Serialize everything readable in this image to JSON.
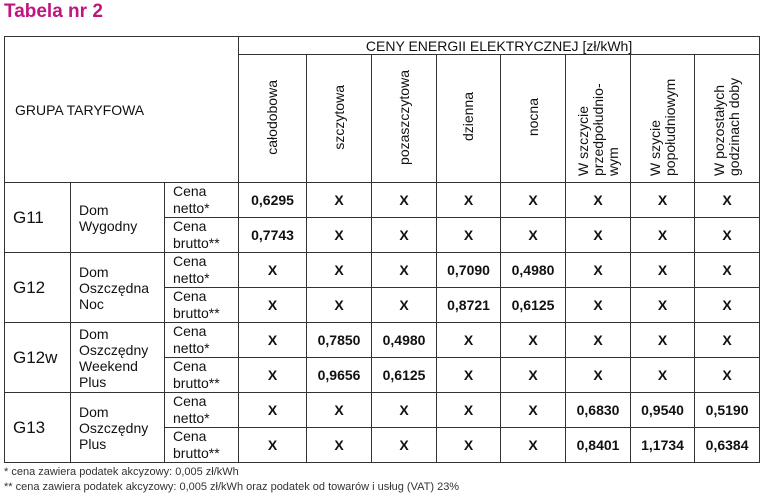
{
  "title": "Tabela nr 2",
  "header": {
    "group_label": "GRUPA TARYFOWA",
    "prices_label": "CENY ENERGII ELEKTRYCZNEJ [zł/kWh]",
    "columns": [
      "całodobowa",
      "szczytowa",
      "pozaszczytowa",
      "dzienna",
      "nocna",
      "W szczycie przedpołudnio-wym",
      "W szycie popołudniowym",
      "W pozostałych godzinach doby"
    ]
  },
  "groups": [
    {
      "code": "G11",
      "name": "Dom Wygodny",
      "rows": [
        {
          "price_type": "Cena netto*",
          "values": [
            "0,6295",
            "X",
            "X",
            "X",
            "X",
            "X",
            "X",
            "X"
          ]
        },
        {
          "price_type": "Cena brutto**",
          "values": [
            "0,7743",
            "X",
            "X",
            "X",
            "X",
            "X",
            "X",
            "X"
          ]
        }
      ]
    },
    {
      "code": "G12",
      "name": "Dom Oszczędna Noc",
      "rows": [
        {
          "price_type": "Cena netto*",
          "values": [
            "X",
            "X",
            "X",
            "0,7090",
            "0,4980",
            "X",
            "X",
            "X"
          ]
        },
        {
          "price_type": "Cena brutto**",
          "values": [
            "X",
            "X",
            "X",
            "0,8721",
            "0,6125",
            "X",
            "X",
            "X"
          ]
        }
      ]
    },
    {
      "code": "G12w",
      "name": "Dom Oszczędny Weekend Plus",
      "rows": [
        {
          "price_type": "Cena netto*",
          "values": [
            "X",
            "0,7850",
            "0,4980",
            "X",
            "X",
            "X",
            "X",
            "X"
          ]
        },
        {
          "price_type": "Cena brutto**",
          "values": [
            "X",
            "0,9656",
            "0,6125",
            "X",
            "X",
            "X",
            "X",
            "X"
          ]
        }
      ]
    },
    {
      "code": "G13",
      "name": "Dom Oszczędny Plus",
      "rows": [
        {
          "price_type": "Cena netto*",
          "values": [
            "X",
            "X",
            "X",
            "X",
            "X",
            "0,6830",
            "0,9540",
            "0,5190"
          ]
        },
        {
          "price_type": "Cena brutto**",
          "values": [
            "X",
            "X",
            "X",
            "X",
            "X",
            "0,8401",
            "1,1734",
            "0,6384"
          ]
        }
      ]
    }
  ],
  "footnotes": [
    "* cena zawiera podatek akcyzowy: 0,005 zł/kWh",
    "** cena zawiera podatek akcyzowy: 0,005 zł/kWh oraz podatek od towarów i usług (VAT) 23%"
  ]
}
